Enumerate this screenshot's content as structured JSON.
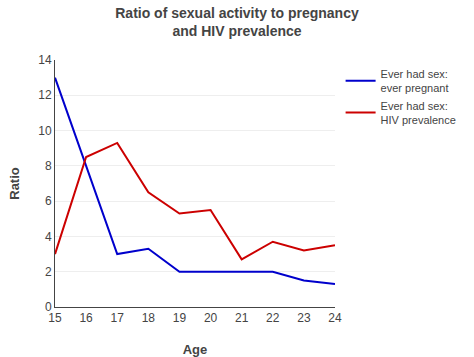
{
  "chart_data": {
    "type": "line",
    "title": "Ratio of sexual activity to pregnancy\nand HIV prevalence",
    "x_label": "Age",
    "y_label": "Ratio",
    "x": [
      15,
      16,
      17,
      18,
      19,
      20,
      21,
      22,
      23,
      24
    ],
    "series": [
      {
        "name": "Ever had sex:\never pregnant",
        "color": "#0000CC",
        "values": [
          13,
          8,
          3,
          3.3,
          2,
          2,
          2,
          2,
          1.5,
          1.3
        ]
      },
      {
        "name": "Ever had sex:\nHIV prevalence",
        "color": "#CC0000",
        "values": [
          3,
          8.5,
          9.3,
          6.5,
          5.3,
          5.5,
          2.7,
          3.7,
          3.2,
          3.5
        ]
      }
    ],
    "xlim": [
      15,
      24
    ],
    "xticks": [
      15,
      16,
      17,
      18,
      19,
      20,
      21,
      22,
      23,
      24
    ],
    "ylim": [
      0,
      14
    ],
    "yticks": [
      0,
      2,
      4,
      6,
      8,
      10,
      12,
      14
    ],
    "grid": "y",
    "legend": "right"
  }
}
